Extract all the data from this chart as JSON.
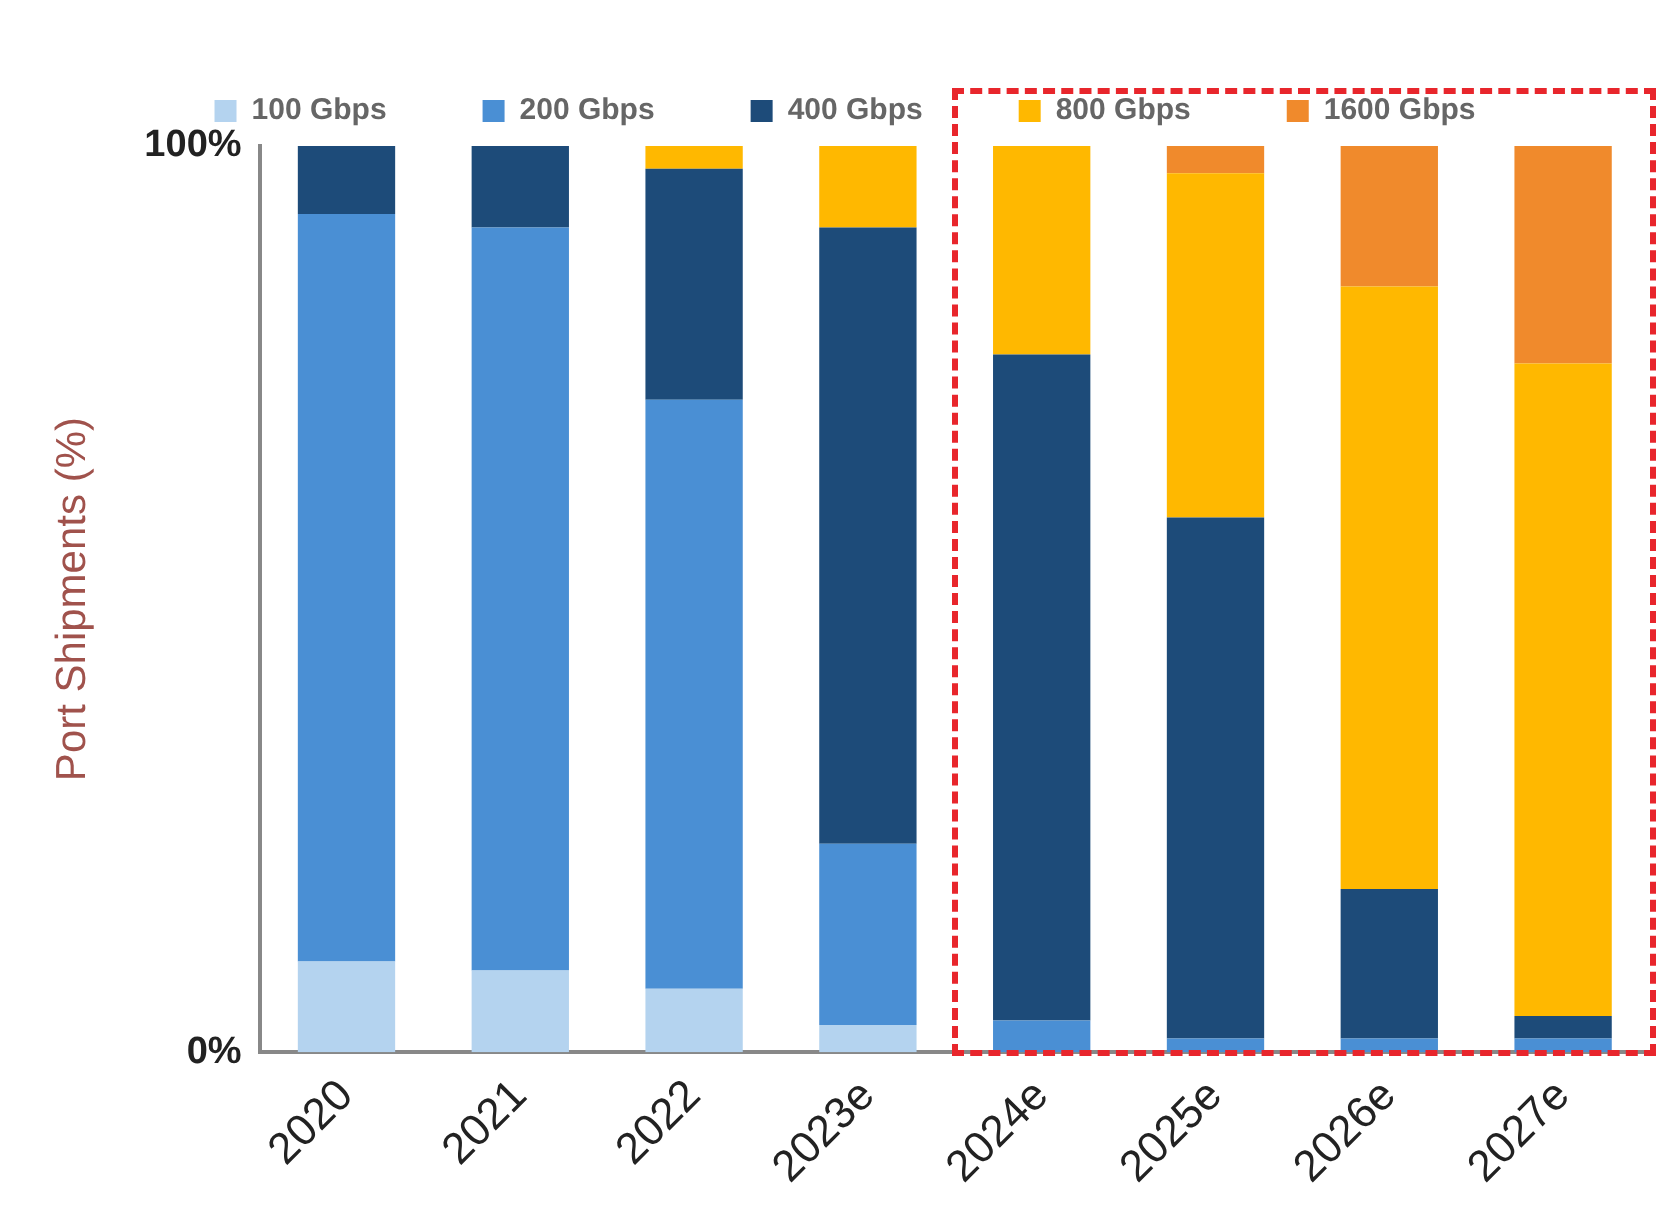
{
  "chart_data": {
    "type": "bar",
    "stacked": true,
    "ylabel": "Port Shipments (%)",
    "categories": [
      "2020",
      "2021",
      "2022",
      "2023e",
      "2024e",
      "2025e",
      "2026e",
      "2027e"
    ],
    "series": [
      {
        "name": "100 Gbps",
        "color": "#b4d3ef",
        "values": [
          10,
          9,
          7,
          3,
          0,
          0,
          0,
          0
        ]
      },
      {
        "name": "200 Gbps",
        "color": "#4a8fd4",
        "values": [
          82.5,
          82,
          65,
          20,
          3.5,
          1.5,
          1.5,
          1.5
        ]
      },
      {
        "name": "400 Gbps",
        "color": "#1d4b79",
        "values": [
          7.5,
          9,
          25.5,
          68,
          73.5,
          57.5,
          16.5,
          2.5
        ]
      },
      {
        "name": "800 Gbps",
        "color": "#ffb800",
        "values": [
          0,
          0,
          2.5,
          9,
          23,
          38,
          66.5,
          72
        ]
      },
      {
        "name": "1600 Gbps",
        "color": "#f08a2c",
        "values": [
          0,
          0,
          0,
          0,
          0,
          3,
          15.5,
          24
        ]
      }
    ],
    "ylim": [
      0,
      100
    ],
    "yticks": [
      {
        "value": 0,
        "label": "0%"
      },
      {
        "value": 100,
        "label": "100%"
      }
    ],
    "grid": false,
    "legend": "top"
  }
}
